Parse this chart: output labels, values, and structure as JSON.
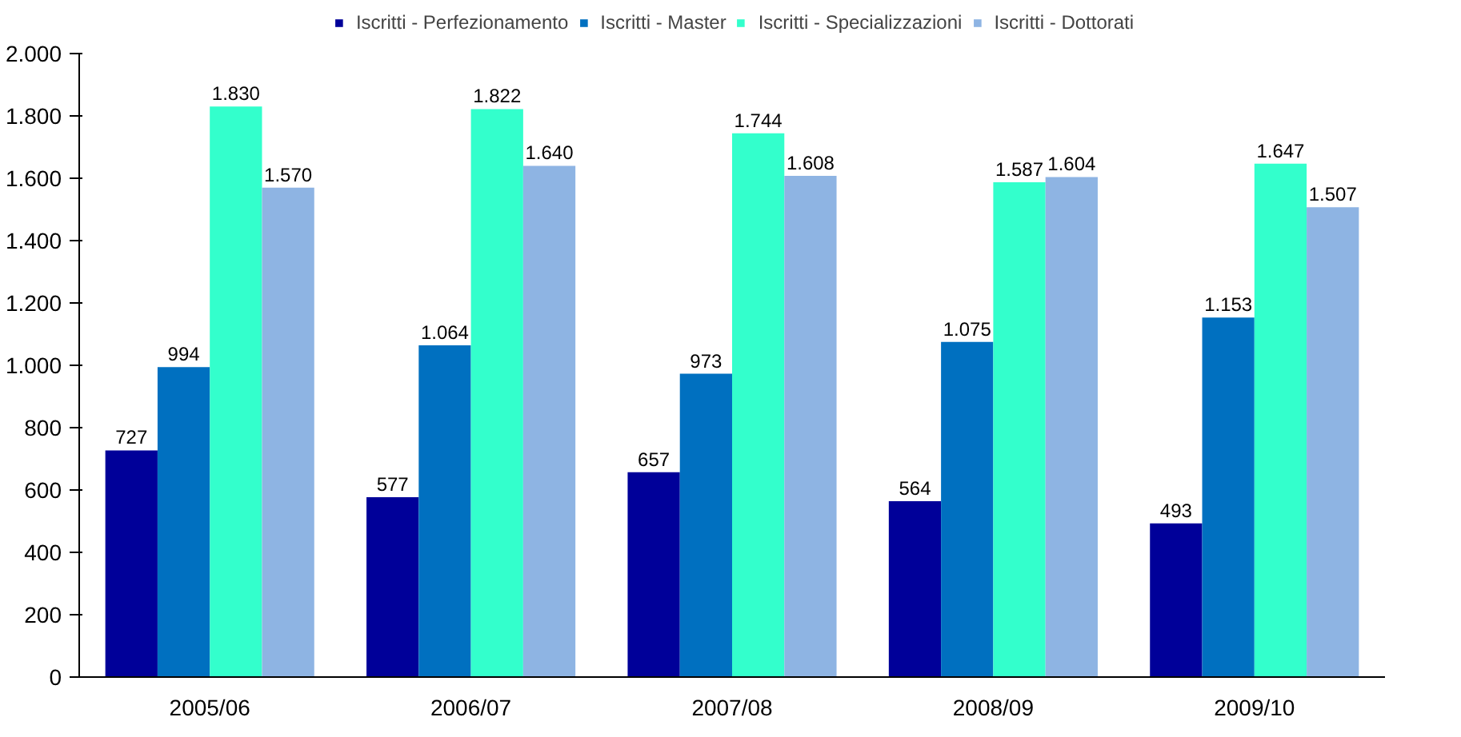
{
  "chart_data": {
    "type": "bar",
    "categories": [
      "2005/06",
      "2006/07",
      "2007/08",
      "2008/09",
      "2009/10"
    ],
    "series": [
      {
        "name": "Iscritti - Perfezionamento",
        "color": "#000099",
        "values": [
          727,
          577,
          657,
          564,
          493
        ],
        "value_labels": [
          "727",
          "577",
          "657",
          "564",
          "493"
        ]
      },
      {
        "name": "Iscritti - Master",
        "color": "#0070c0",
        "values": [
          994,
          1064,
          973,
          1075,
          1153
        ],
        "value_labels": [
          "994",
          "1.064",
          "973",
          "1.075",
          "1.153"
        ]
      },
      {
        "name": "Iscritti - Specializzazioni",
        "color": "#33ffcc",
        "values": [
          1830,
          1822,
          1744,
          1587,
          1647
        ],
        "value_labels": [
          "1.830",
          "1.822",
          "1.744",
          "1.587",
          "1.647"
        ]
      },
      {
        "name": "Iscritti - Dottorati",
        "color": "#8eb4e3",
        "values": [
          1570,
          1640,
          1608,
          1604,
          1507
        ],
        "value_labels": [
          "1.570",
          "1.640",
          "1.608",
          "1.604",
          "1.507"
        ]
      }
    ],
    "ylim": [
      0,
      2000
    ],
    "yticks": [
      {
        "value": 0,
        "label": "0"
      },
      {
        "value": 200,
        "label": "200"
      },
      {
        "value": 400,
        "label": "400"
      },
      {
        "value": 600,
        "label": "600"
      },
      {
        "value": 800,
        "label": "800"
      },
      {
        "value": 1000,
        "label": "1.000"
      },
      {
        "value": 1200,
        "label": "1.200"
      },
      {
        "value": 1400,
        "label": "1.400"
      },
      {
        "value": 1600,
        "label": "1.600"
      },
      {
        "value": 1800,
        "label": "1.800"
      },
      {
        "value": 2000,
        "label": "2.000"
      }
    ],
    "grid": false,
    "legend": "top"
  }
}
